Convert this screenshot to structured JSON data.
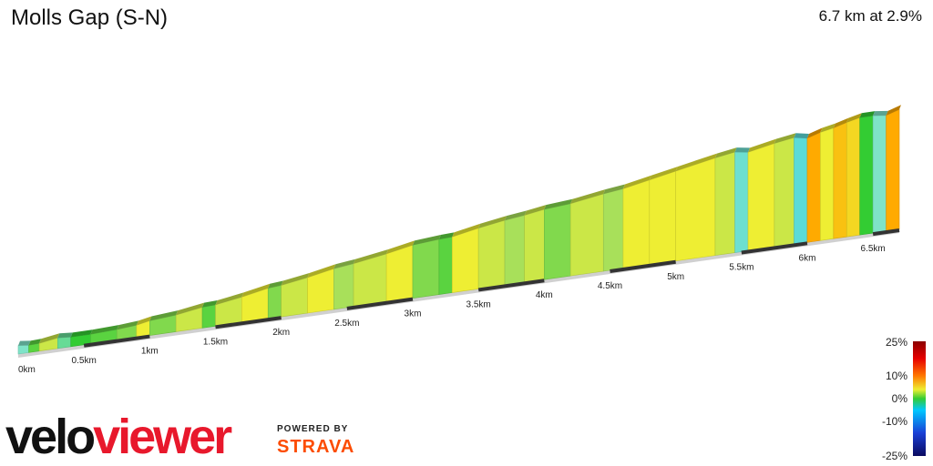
{
  "header": {
    "title": "Molls Gap (S-N)",
    "summary": "6.7 km at 2.9%"
  },
  "chart_data": {
    "type": "area",
    "title": "Molls Gap (S-N)",
    "distance_unit": "km",
    "total_distance_km": 6.7,
    "average_gradient_pct": 2.9,
    "x_ticks": [
      "0km",
      "0.5km",
      "1km",
      "1.5km",
      "2km",
      "2.5km",
      "3km",
      "3.5km",
      "4km",
      "4.5km",
      "5km",
      "5.5km",
      "6km",
      "6.5km"
    ],
    "x_tick_values": [
      0,
      0.5,
      1,
      1.5,
      2,
      2.5,
      3,
      3.5,
      4,
      4.5,
      5,
      5.5,
      6,
      6.5
    ],
    "segments": [
      {
        "from": 0.0,
        "to": 0.08,
        "gradient": -3
      },
      {
        "from": 0.08,
        "to": 0.16,
        "gradient": 1
      },
      {
        "from": 0.16,
        "to": 0.3,
        "gradient": 4
      },
      {
        "from": 0.3,
        "to": 0.4,
        "gradient": -2
      },
      {
        "from": 0.4,
        "to": 0.55,
        "gradient": 0
      },
      {
        "from": 0.55,
        "to": 0.75,
        "gradient": 1
      },
      {
        "from": 0.75,
        "to": 0.9,
        "gradient": 2
      },
      {
        "from": 0.9,
        "to": 1.0,
        "gradient": 5
      },
      {
        "from": 1.0,
        "to": 1.2,
        "gradient": 2
      },
      {
        "from": 1.2,
        "to": 1.4,
        "gradient": 4
      },
      {
        "from": 1.4,
        "to": 1.5,
        "gradient": 1
      },
      {
        "from": 1.5,
        "to": 1.7,
        "gradient": 4
      },
      {
        "from": 1.7,
        "to": 1.9,
        "gradient": 5
      },
      {
        "from": 1.9,
        "to": 2.0,
        "gradient": 2
      },
      {
        "from": 2.0,
        "to": 2.2,
        "gradient": 4
      },
      {
        "from": 2.2,
        "to": 2.4,
        "gradient": 5
      },
      {
        "from": 2.4,
        "to": 2.55,
        "gradient": 3
      },
      {
        "from": 2.55,
        "to": 2.8,
        "gradient": 4
      },
      {
        "from": 2.8,
        "to": 3.0,
        "gradient": 5
      },
      {
        "from": 3.0,
        "to": 3.2,
        "gradient": 2
      },
      {
        "from": 3.2,
        "to": 3.3,
        "gradient": 1
      },
      {
        "from": 3.3,
        "to": 3.5,
        "gradient": 5
      },
      {
        "from": 3.5,
        "to": 3.7,
        "gradient": 4
      },
      {
        "from": 3.7,
        "to": 3.85,
        "gradient": 3
      },
      {
        "from": 3.85,
        "to": 4.0,
        "gradient": 4
      },
      {
        "from": 4.0,
        "to": 4.2,
        "gradient": 2
      },
      {
        "from": 4.2,
        "to": 4.45,
        "gradient": 4
      },
      {
        "from": 4.45,
        "to": 4.6,
        "gradient": 3
      },
      {
        "from": 4.6,
        "to": 4.8,
        "gradient": 5
      },
      {
        "from": 4.8,
        "to": 5.0,
        "gradient": 5
      },
      {
        "from": 5.0,
        "to": 5.3,
        "gradient": 5
      },
      {
        "from": 5.3,
        "to": 5.45,
        "gradient": 4
      },
      {
        "from": 5.45,
        "to": 5.55,
        "gradient": -4
      },
      {
        "from": 5.55,
        "to": 5.75,
        "gradient": 5
      },
      {
        "from": 5.75,
        "to": 5.9,
        "gradient": 4
      },
      {
        "from": 5.9,
        "to": 6.0,
        "gradient": -5
      },
      {
        "from": 6.0,
        "to": 6.1,
        "gradient": 8
      },
      {
        "from": 6.1,
        "to": 6.2,
        "gradient": 5
      },
      {
        "from": 6.2,
        "to": 6.3,
        "gradient": 7
      },
      {
        "from": 6.3,
        "to": 6.4,
        "gradient": 6
      },
      {
        "from": 6.4,
        "to": 6.5,
        "gradient": 0
      },
      {
        "from": 6.5,
        "to": 6.6,
        "gradient": -3
      },
      {
        "from": 6.6,
        "to": 6.7,
        "gradient": 8
      }
    ],
    "legend": {
      "labels": [
        "25%",
        "10%",
        "0%",
        "-10%",
        "-25%"
      ],
      "values": [
        25,
        10,
        0,
        -10,
        -25
      ]
    }
  },
  "colors": {
    "gradient_neg25": "#1a1a8c",
    "gradient_neg10": "#00c8ff",
    "gradient_neg3": "#7fe3c8",
    "gradient_0": "#33cc33",
    "gradient_3": "#a8e05a",
    "gradient_5": "#eeee33",
    "gradient_8": "#ffaa00",
    "gradient_10": "#ff7700",
    "gradient_25": "#8b0000",
    "axis_line": "#d0d0d0",
    "km_band": "#333333",
    "brand_red": "#e8182c",
    "strava_orange": "#fc4c02"
  },
  "branding": {
    "logo_part1": "velo",
    "logo_part2": "viewer",
    "powered_by": "POWERED BY",
    "strava": "STRAVA"
  }
}
